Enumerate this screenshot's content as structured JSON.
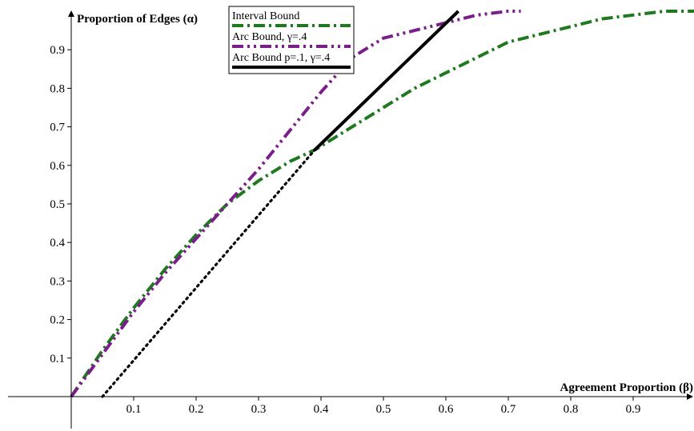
{
  "chart_data": {
    "type": "line",
    "xlabel": "Agreement Proportion (β)",
    "ylabel": "Proportion of Edges (α)",
    "xlim": [
      -0.11,
      1.0
    ],
    "ylim": [
      -0.08,
      1.0
    ],
    "x_ticks": [
      "0.1",
      "0.2",
      "0.3",
      "0.4",
      "0.5",
      "0.6",
      "0.7",
      "0.8",
      "0.9"
    ],
    "y_ticks": [
      "0.1",
      "0.2",
      "0.3",
      "0.4",
      "0.5",
      "0.6",
      "0.7",
      "0.8",
      "0.9"
    ],
    "legend_position": "top-center",
    "series": [
      {
        "name": "Interval Bound",
        "color": "#1f7a1f",
        "style": "dash-dot",
        "x": [
          0.0,
          0.05,
          0.1,
          0.15,
          0.2,
          0.25,
          0.3,
          0.35,
          0.39,
          0.45,
          0.5,
          0.55,
          0.6,
          0.65,
          0.7,
          0.75,
          0.8,
          0.85,
          0.9,
          0.95,
          1.0
        ],
        "y": [
          0.0,
          0.12,
          0.23,
          0.33,
          0.42,
          0.5,
          0.56,
          0.61,
          0.64,
          0.7,
          0.75,
          0.8,
          0.84,
          0.88,
          0.92,
          0.94,
          0.96,
          0.98,
          0.99,
          1.0,
          1.0
        ]
      },
      {
        "name": "Arc Bound, γ=.4",
        "color": "#7a1f8a",
        "style": "dash-dot-dot",
        "x": [
          0.0,
          0.05,
          0.1,
          0.15,
          0.2,
          0.25,
          0.3,
          0.35,
          0.4,
          0.45,
          0.5,
          0.55,
          0.6,
          0.65,
          0.7,
          0.72
        ],
        "y": [
          0.0,
          0.11,
          0.22,
          0.32,
          0.41,
          0.5,
          0.59,
          0.69,
          0.79,
          0.88,
          0.93,
          0.95,
          0.97,
          0.99,
          1.0,
          1.0
        ]
      },
      {
        "name": "Arc Bound p=.1, γ=.4",
        "color": "#000000",
        "style": "solid",
        "x": [
          0.39,
          0.62
        ],
        "y": [
          0.64,
          1.0
        ]
      },
      {
        "color": "#000000",
        "style": "dotted",
        "x": [
          0.05,
          0.39
        ],
        "y": [
          0.0,
          0.64
        ]
      }
    ]
  }
}
